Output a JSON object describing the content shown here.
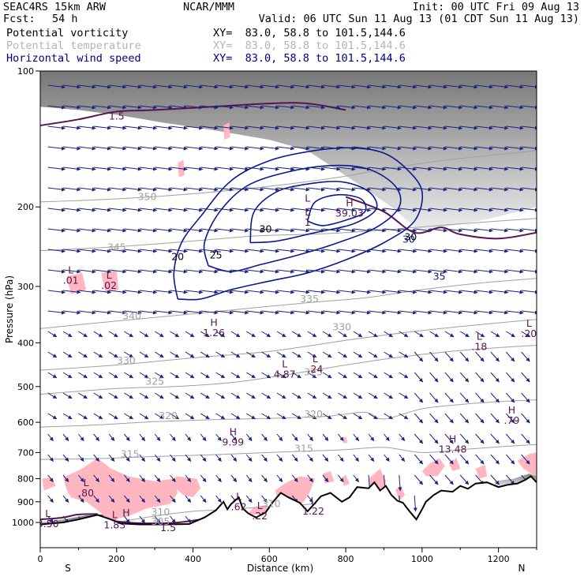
{
  "header": {
    "model": "SEAC4RS 15km ARW",
    "org": "NCAR/MMM",
    "init": "Init: 00 UTC Fri 09 Aug 13",
    "fcst_label": "Fcst:",
    "fcst_value": "54 h",
    "valid": "Valid: 06 UTC Sun 11 Aug 13 (01 CDT Sun 11 Aug 13)",
    "fields": [
      {
        "name": "Potential vorticity",
        "xy": "XY=  83.0, 58.8 to 101.5,144.6",
        "color": "#000000"
      },
      {
        "name": "Potential temperature",
        "xy": "XY=  83.0, 58.8 to 101.5,144.6",
        "color": "#b4b4b4"
      },
      {
        "name": "Horizontal wind speed",
        "xy": "XY=  83.0, 58.8 to 101.5,144.6",
        "color": "#00007a"
      }
    ]
  },
  "colors": {
    "pv_shade_low": "#ffb6c1",
    "pv_contour": "#5a1450",
    "theta": "#a0a0a0",
    "wind_speed": "#0a1a8c",
    "vector": "#1a237e",
    "terrain": "#000000"
  },
  "chart_data": {
    "type": "cross-section",
    "xlabel": "Distance (km)",
    "ylabel": "Pressure (hPa)",
    "xlim": [
      0,
      1300
    ],
    "ylim": [
      1050,
      100
    ],
    "y_scale": "log",
    "x_ticks": [
      0,
      200,
      400,
      600,
      800,
      1000,
      1200
    ],
    "y_ticks": [
      100,
      200,
      300,
      400,
      500,
      600,
      700,
      800,
      900,
      1000
    ],
    "endpoints": {
      "left": "S",
      "right": "N"
    },
    "theta_contours": [
      {
        "value": "350",
        "km": 280,
        "p": 193
      },
      {
        "value": "345",
        "km": 200,
        "p": 250
      },
      {
        "value": "340",
        "km": 240,
        "p": 355
      },
      {
        "value": "335",
        "km": 705,
        "p": 325
      },
      {
        "value": "330",
        "km": 790,
        "p": 375
      },
      {
        "value": "330",
        "km": 225,
        "p": 445
      },
      {
        "value": "325",
        "km": 300,
        "p": 495
      },
      {
        "value": "325",
        "km": 715,
        "p": 472
      },
      {
        "value": "320",
        "km": 335,
        "p": 590
      },
      {
        "value": "320",
        "km": 715,
        "p": 585
      },
      {
        "value": "315",
        "km": 235,
        "p": 718
      },
      {
        "value": "315",
        "km": 690,
        "p": 697
      },
      {
        "value": "310",
        "km": 315,
        "p": 965
      },
      {
        "value": "310",
        "km": 605,
        "p": 925
      },
      {
        "value": "305",
        "km": 315,
        "p": 1012
      },
      {
        "value": "35",
        "km": 1045,
        "p": 290
      },
      {
        "value": "30",
        "km": 965,
        "p": 240
      }
    ],
    "wind_speed_contours": [
      {
        "value": "20",
        "km": 360,
        "p": 262
      },
      {
        "value": "25",
        "km": 460,
        "p": 260
      },
      {
        "value": "30",
        "km": 590,
        "p": 228
      },
      {
        "value": "30",
        "km": 970,
        "p": 237
      }
    ],
    "extrema": [
      {
        "type": "L",
        "value": ".01",
        "km": 80,
        "p": 296
      },
      {
        "type": "L",
        "value": ".02",
        "km": 180,
        "p": 304
      },
      {
        "type": "H",
        "value": "1.26",
        "km": 455,
        "p": 387
      },
      {
        "type": "L",
        "value": "4.87",
        "km": 640,
        "p": 478
      },
      {
        "type": "L",
        "value": ".24",
        "km": 720,
        "p": 465
      },
      {
        "type": "L",
        "value": ".18",
        "km": 1150,
        "p": 415
      },
      {
        "type": "L",
        "value": ".20",
        "km": 1280,
        "p": 388
      },
      {
        "type": "H",
        "value": "39.03",
        "km": 810,
        "p": 210
      },
      {
        "type": "L",
        "value": "",
        "km": 700,
        "p": 205
      },
      {
        "type": "L",
        "value": "1",
        "km": 700,
        "p": 220
      },
      {
        "type": "H",
        "value": ".79",
        "km": 1235,
        "p": 605
      },
      {
        "type": "H",
        "value": "9.99",
        "km": 505,
        "p": 675
      },
      {
        "type": "H",
        "value": "13.48",
        "km": 1080,
        "p": 700
      },
      {
        "type": "L",
        "value": ".80",
        "km": 120,
        "p": 875
      },
      {
        "type": "L",
        "value": ".62",
        "km": 520,
        "p": 940
      },
      {
        "type": "L",
        "value": ".22",
        "km": 575,
        "p": 985
      },
      {
        "type": "L",
        "value": "1.22",
        "km": 715,
        "p": 960
      },
      {
        "type": "L",
        "value": "3.50",
        "km": 20,
        "p": 1025
      },
      {
        "type": "L",
        "value": "1.83",
        "km": 195,
        "p": 1030
      },
      {
        "type": "H",
        "value": "",
        "km": 225,
        "p": 1020
      },
      {
        "type": "",
        "value": "1.5",
        "km": 200,
        "p": 128
      },
      {
        "type": "",
        "value": "1.5",
        "km": 335,
        "p": 1045
      }
    ]
  }
}
